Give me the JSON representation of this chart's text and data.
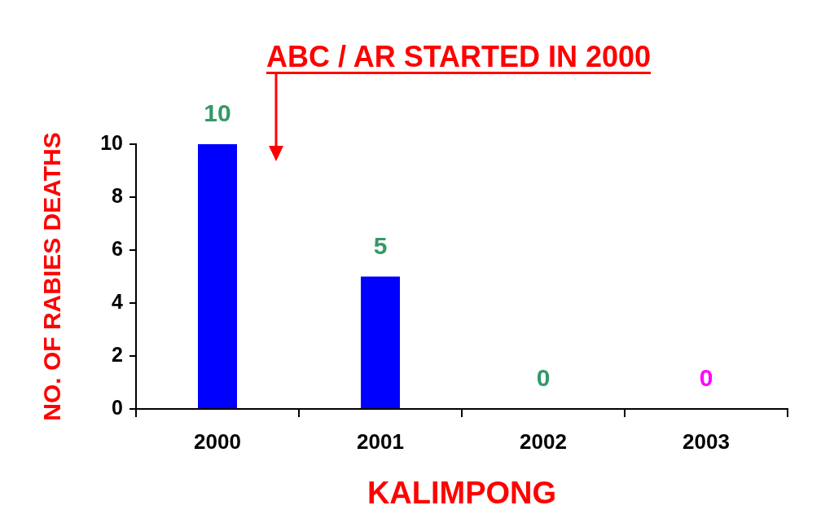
{
  "chart_data": {
    "type": "bar",
    "categories": [
      "2000",
      "2001",
      "2002",
      "2003"
    ],
    "values": [
      10,
      5,
      0,
      0
    ],
    "color": "#0000ff",
    "ylim": [
      0,
      10
    ],
    "yticks": [
      0,
      2,
      4,
      6,
      8,
      10
    ],
    "ylabel": "NO. OF RABIES DEATHS",
    "xlabel": "KALIMPONG",
    "data_labels": true,
    "annotations": [
      "ABC / AR STARTED IN 2000"
    ]
  }
}
